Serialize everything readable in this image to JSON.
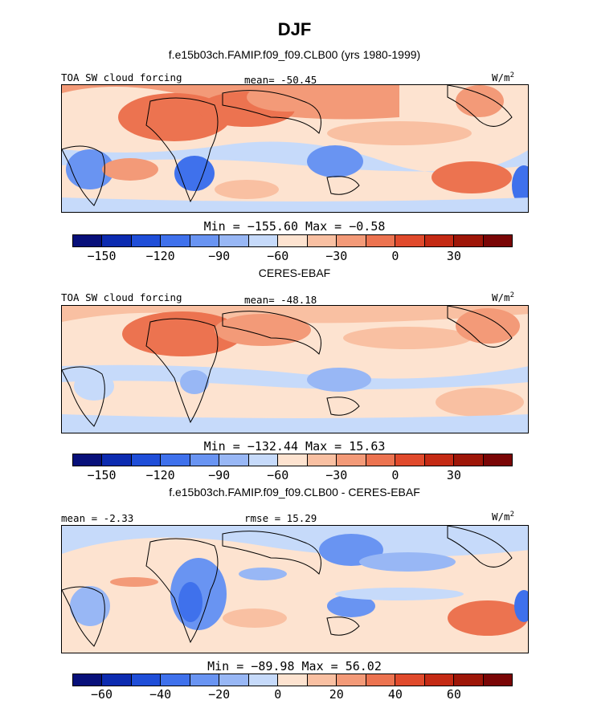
{
  "chart_data": [
    {
      "type": "heatmap",
      "title": "DJF",
      "subtitle": "f.e15b03ch.FAMIP.f09_f09.CLB00 (yrs 1980-1999)",
      "field_label": "TOA SW cloud forcing",
      "mean_text": "mean= -50.45",
      "units_text": "W/m",
      "units_sup": "2",
      "min_max_text": "Min = −155.60 Max = −0.58",
      "colorbar": {
        "levels": [
          -165,
          -150,
          -135,
          -120,
          -105,
          -90,
          -75,
          -60,
          -45,
          -30,
          -15,
          0,
          15,
          30,
          45
        ],
        "tick_labels": [
          "−150",
          "−120",
          "−90",
          "−60",
          "−30",
          "0",
          "30"
        ],
        "tick_values": [
          -150,
          -120,
          -90,
          -60,
          -30,
          0,
          30
        ],
        "colors": [
          "#08107a",
          "#0c2bb0",
          "#1f4ed8",
          "#3f71ec",
          "#6994f2",
          "#98b7f5",
          "#c6dafa",
          "#fde3d0",
          "#f9c0a2",
          "#f39a78",
          "#ec7350",
          "#e04a2c",
          "#c42a14",
          "#9e1608",
          "#7a0606"
        ]
      }
    },
    {
      "type": "heatmap",
      "subtitle": "CERES-EBAF",
      "field_label": "TOA SW cloud forcing",
      "mean_text": "mean= -48.18",
      "units_text": "W/m",
      "units_sup": "2",
      "min_max_text": "Min = −132.44 Max = 15.63",
      "colorbar": {
        "levels": [
          -165,
          -150,
          -135,
          -120,
          -105,
          -90,
          -75,
          -60,
          -45,
          -30,
          -15,
          0,
          15,
          30,
          45
        ],
        "tick_labels": [
          "−150",
          "−120",
          "−90",
          "−60",
          "−30",
          "0",
          "30"
        ],
        "tick_values": [
          -150,
          -120,
          -90,
          -60,
          -30,
          0,
          30
        ],
        "colors": [
          "#08107a",
          "#0c2bb0",
          "#1f4ed8",
          "#3f71ec",
          "#6994f2",
          "#98b7f5",
          "#c6dafa",
          "#fde3d0",
          "#f9c0a2",
          "#f39a78",
          "#ec7350",
          "#e04a2c",
          "#c42a14",
          "#9e1608",
          "#7a0606"
        ]
      }
    },
    {
      "type": "heatmap",
      "subtitle": "f.e15b03ch.FAMIP.f09_f09.CLB00 - CERES-EBAF",
      "mean_text": "mean = -2.33",
      "rmse_text": "rmse = 15.29",
      "units_text": "W/m",
      "units_sup": "2",
      "min_max_text": "Min = −89.98 Max = 56.02",
      "colorbar": {
        "levels": [
          -70,
          -60,
          -50,
          -40,
          -30,
          -20,
          -10,
          0,
          10,
          20,
          30,
          40,
          50,
          60,
          70
        ],
        "tick_labels": [
          "−60",
          "−40",
          "−20",
          "0",
          "20",
          "40",
          "60"
        ],
        "tick_values": [
          -60,
          -40,
          -20,
          0,
          20,
          40,
          60
        ],
        "colors": [
          "#08107a",
          "#0c2bb0",
          "#1f4ed8",
          "#3f71ec",
          "#6994f2",
          "#98b7f5",
          "#c6dafa",
          "#fde3d0",
          "#f9c0a2",
          "#f39a78",
          "#ec7350",
          "#e04a2c",
          "#c42a14",
          "#9e1608",
          "#7a0606"
        ]
      }
    }
  ]
}
